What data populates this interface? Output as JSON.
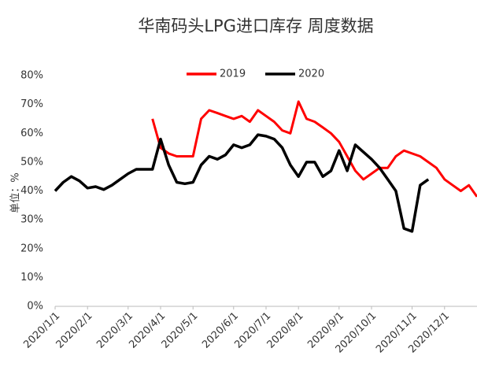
{
  "chart_data": {
    "type": "line",
    "title": "华南码头LPG进口库存 周度数据",
    "y_label": "单位：%",
    "categories": [
      "2020/1/1",
      null,
      null,
      null,
      "2020/2/1",
      null,
      null,
      null,
      null,
      "2020/3/1",
      null,
      null,
      null,
      "2020/4/1",
      null,
      null,
      null,
      "2020/5/1",
      null,
      null,
      null,
      null,
      "2020/6/1",
      null,
      null,
      null,
      "2020/7/1",
      null,
      null,
      null,
      "2020/8/1",
      null,
      null,
      null,
      null,
      "2020/9/1",
      null,
      null,
      null,
      "2020/10/1",
      null,
      null,
      null,
      null,
      "2020/11/1",
      null,
      null,
      null,
      "2020/12/1",
      null,
      null,
      null,
      null
    ],
    "series": [
      {
        "name": "2019",
        "color": "#ff0000",
        "values": [
          null,
          null,
          null,
          null,
          null,
          null,
          null,
          null,
          null,
          null,
          null,
          null,
          65,
          55,
          53,
          52,
          52,
          52,
          65,
          68,
          67,
          66,
          65,
          66,
          64,
          68,
          66,
          64,
          61,
          60,
          71,
          65,
          64,
          62,
          60,
          57,
          52,
          47,
          44,
          46,
          48,
          48,
          52,
          54,
          53,
          52,
          50,
          48,
          44,
          42,
          40,
          42,
          38
        ]
      },
      {
        "name": "2020",
        "color": "#000000",
        "values": [
          40,
          43,
          45,
          43.5,
          41,
          41.5,
          40.5,
          42,
          44,
          46,
          47.5,
          47.5,
          47.5,
          58,
          49,
          43,
          42.5,
          43,
          49,
          52,
          51,
          52.5,
          56,
          55,
          56,
          59.5,
          59,
          58,
          55,
          49,
          45,
          50,
          50,
          45,
          47,
          54,
          47,
          56,
          53.5,
          51,
          48,
          44,
          40,
          27,
          26,
          42,
          44,
          null,
          null,
          null,
          null,
          null,
          null
        ]
      }
    ],
    "ylim": [
      0,
      80
    ],
    "yticks": [
      {
        "value": 0,
        "label": "0%"
      },
      {
        "value": 10,
        "label": "10%"
      },
      {
        "value": 20,
        "label": "20%"
      },
      {
        "value": 30,
        "label": "30%"
      },
      {
        "value": 40,
        "label": "40%"
      },
      {
        "value": 50,
        "label": "50%"
      },
      {
        "value": 60,
        "label": "60%"
      },
      {
        "value": 70,
        "label": "70%"
      },
      {
        "value": 80,
        "label": "80%"
      }
    ],
    "grid": false,
    "legend": "top"
  }
}
